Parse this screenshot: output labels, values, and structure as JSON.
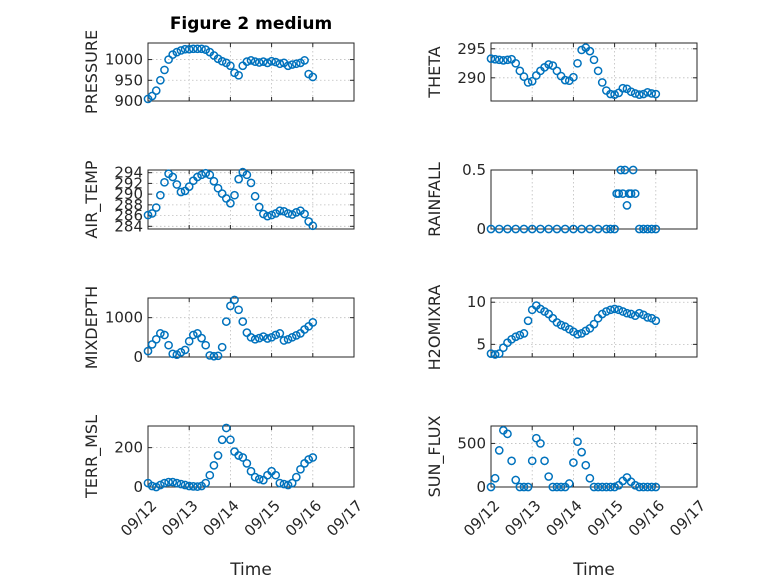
{
  "figure": {
    "title": "Figure 2 medium",
    "xlabel": "Time"
  },
  "colors": {
    "marker": "#0072bd",
    "axis": "#262626"
  },
  "x_ticks": [
    "09/12",
    "09/13",
    "09/14",
    "09/15",
    "09/16",
    "09/17"
  ],
  "chart_data": [
    {
      "type": "scatter",
      "id": "pressure",
      "ylabel": "PRESSURE",
      "xlim": [
        0,
        5
      ],
      "ylim": [
        900,
        1040
      ],
      "yticks": [
        900,
        950,
        1000
      ],
      "x": [
        0,
        0.1,
        0.2,
        0.3,
        0.4,
        0.5,
        0.6,
        0.7,
        0.8,
        0.9,
        1.0,
        1.1,
        1.2,
        1.3,
        1.4,
        1.5,
        1.6,
        1.7,
        1.8,
        1.9,
        2.0,
        2.1,
        2.2,
        2.3,
        2.4,
        2.5,
        2.6,
        2.7,
        2.8,
        2.9,
        3.0,
        3.1,
        3.2,
        3.3,
        3.4,
        3.5,
        3.6,
        3.7,
        3.8,
        3.9,
        4.0
      ],
      "y": [
        905,
        912,
        925,
        950,
        975,
        1000,
        1012,
        1018,
        1022,
        1025,
        1025,
        1026,
        1026,
        1026,
        1024,
        1018,
        1010,
        1002,
        996,
        992,
        985,
        968,
        962,
        985,
        995,
        998,
        995,
        993,
        995,
        992,
        996,
        994,
        990,
        992,
        985,
        988,
        990,
        992,
        998,
        965,
        958
      ]
    },
    {
      "type": "scatter",
      "id": "theta",
      "ylabel": "THETA",
      "xlim": [
        0,
        5
      ],
      "ylim": [
        286,
        296
      ],
      "yticks": [
        290,
        295
      ],
      "x": [
        0,
        0.1,
        0.2,
        0.3,
        0.4,
        0.5,
        0.6,
        0.7,
        0.8,
        0.9,
        1.0,
        1.1,
        1.2,
        1.3,
        1.4,
        1.5,
        1.6,
        1.7,
        1.8,
        1.9,
        2.0,
        2.1,
        2.2,
        2.3,
        2.4,
        2.5,
        2.6,
        2.7,
        2.8,
        2.9,
        3.0,
        3.1,
        3.2,
        3.3,
        3.4,
        3.5,
        3.6,
        3.7,
        3.8,
        3.9,
        4.0
      ],
      "y": [
        293.3,
        293.2,
        293.1,
        293,
        293.1,
        293.2,
        292.5,
        291.2,
        290.2,
        289.2,
        289.4,
        290.4,
        291.2,
        291.8,
        292.3,
        292.1,
        291.2,
        290.3,
        289.6,
        289.5,
        290.1,
        292.5,
        294.8,
        295.2,
        294.6,
        293.1,
        291.2,
        289.2,
        287.8,
        287.2,
        287.1,
        287.4,
        288.2,
        288.1,
        287.6,
        287.3,
        287.1,
        287.2,
        287.5,
        287.3,
        287.2
      ]
    },
    {
      "type": "scatter",
      "id": "air_temp",
      "ylabel": "AIR_TEMP",
      "xlim": [
        0,
        5
      ],
      "ylim": [
        283.5,
        294.5
      ],
      "yticks": [
        284,
        286,
        288,
        290,
        292,
        294
      ],
      "x": [
        0,
        0.1,
        0.2,
        0.3,
        0.4,
        0.5,
        0.6,
        0.7,
        0.8,
        0.9,
        1.0,
        1.1,
        1.2,
        1.3,
        1.4,
        1.5,
        1.6,
        1.7,
        1.8,
        1.9,
        2.0,
        2.1,
        2.2,
        2.3,
        2.4,
        2.5,
        2.6,
        2.7,
        2.8,
        2.9,
        3.0,
        3.1,
        3.2,
        3.3,
        3.4,
        3.5,
        3.6,
        3.7,
        3.8,
        3.9,
        4.0
      ],
      "y": [
        286.1,
        286.4,
        287.5,
        289.8,
        292.2,
        293.8,
        293.2,
        291.8,
        290.4,
        290.6,
        291.4,
        292.5,
        293.2,
        293.6,
        293.9,
        293.6,
        292.4,
        291.1,
        290.1,
        289.2,
        288.3,
        289.8,
        292.8,
        294.1,
        293.6,
        292.1,
        289.6,
        287.6,
        286.3,
        285.9,
        286.1,
        286.4,
        286.9,
        286.8,
        286.4,
        286.2,
        286.6,
        286.9,
        286.3,
        284.9,
        284.1
      ]
    },
    {
      "type": "scatter",
      "id": "rainfall",
      "ylabel": "RAINFALL",
      "xlim": [
        0,
        5
      ],
      "ylim": [
        0,
        0.5
      ],
      "yticks": [
        0,
        0.5
      ],
      "x": [
        0,
        0.2,
        0.4,
        0.6,
        0.8,
        1.0,
        1.2,
        1.4,
        1.6,
        1.8,
        2.0,
        2.2,
        2.4,
        2.6,
        2.8,
        2.9,
        3.0,
        3.05,
        3.1,
        3.15,
        3.2,
        3.25,
        3.3,
        3.35,
        3.4,
        3.45,
        3.5,
        3.6,
        3.7,
        3.8,
        3.9,
        4.0
      ],
      "y": [
        0,
        0,
        0,
        0,
        0,
        0,
        0,
        0,
        0,
        0,
        0,
        0,
        0,
        0,
        0,
        0,
        0,
        0.3,
        0.3,
        0.5,
        0.3,
        0.5,
        0.2,
        0.3,
        0.3,
        0.5,
        0.3,
        0,
        0,
        0,
        0,
        0
      ]
    },
    {
      "type": "scatter",
      "id": "mixdepth",
      "ylabel": "MIXDEPTH",
      "xlim": [
        0,
        5
      ],
      "ylim": [
        0,
        1500
      ],
      "yticks": [
        0,
        1000
      ],
      "x": [
        0,
        0.1,
        0.2,
        0.3,
        0.4,
        0.5,
        0.6,
        0.7,
        0.8,
        0.9,
        1.0,
        1.1,
        1.2,
        1.3,
        1.4,
        1.5,
        1.6,
        1.7,
        1.8,
        1.9,
        2.0,
        2.1,
        2.2,
        2.3,
        2.4,
        2.5,
        2.6,
        2.7,
        2.8,
        2.9,
        3.0,
        3.1,
        3.2,
        3.3,
        3.4,
        3.5,
        3.6,
        3.7,
        3.8,
        3.9,
        4.0
      ],
      "y": [
        150,
        320,
        450,
        600,
        560,
        300,
        80,
        60,
        120,
        180,
        400,
        560,
        600,
        480,
        300,
        40,
        20,
        30,
        250,
        900,
        1300,
        1450,
        1200,
        900,
        620,
        500,
        450,
        480,
        520,
        470,
        500,
        560,
        600,
        420,
        450,
        500,
        550,
        600,
        700,
        780,
        880
      ]
    },
    {
      "type": "scatter",
      "id": "h2omixra",
      "ylabel": "H2OMIXRA",
      "xlim": [
        0,
        5
      ],
      "ylim": [
        3.5,
        10.5
      ],
      "yticks": [
        5,
        10
      ],
      "x": [
        0,
        0.1,
        0.2,
        0.3,
        0.4,
        0.5,
        0.6,
        0.7,
        0.8,
        0.9,
        1.0,
        1.1,
        1.2,
        1.3,
        1.4,
        1.5,
        1.6,
        1.7,
        1.8,
        1.9,
        2.0,
        2.1,
        2.2,
        2.3,
        2.4,
        2.5,
        2.6,
        2.7,
        2.8,
        2.9,
        3.0,
        3.1,
        3.2,
        3.3,
        3.4,
        3.5,
        3.6,
        3.7,
        3.8,
        3.9,
        4.0
      ],
      "y": [
        3.9,
        3.8,
        3.9,
        4.6,
        5.2,
        5.6,
        5.9,
        6.1,
        6.3,
        7.8,
        9.1,
        9.6,
        9.2,
        8.9,
        8.6,
        8.1,
        7.6,
        7.3,
        7.1,
        6.8,
        6.5,
        6.2,
        6.3,
        6.6,
        6.9,
        7.4,
        8.1,
        8.6,
        8.9,
        9.1,
        9.2,
        9.1,
        8.9,
        8.7,
        8.6,
        8.4,
        8.7,
        8.5,
        8.2,
        8.1,
        7.8
      ]
    },
    {
      "type": "scatter",
      "id": "terr_msl",
      "ylabel": "TERR_MSL",
      "xlim": [
        0,
        5
      ],
      "ylim": [
        0,
        310
      ],
      "yticks": [
        0,
        200
      ],
      "x": [
        0,
        0.1,
        0.2,
        0.3,
        0.4,
        0.5,
        0.6,
        0.7,
        0.8,
        0.9,
        1.0,
        1.1,
        1.2,
        1.3,
        1.4,
        1.5,
        1.6,
        1.7,
        1.8,
        1.9,
        2.0,
        2.1,
        2.2,
        2.3,
        2.4,
        2.5,
        2.6,
        2.7,
        2.8,
        2.9,
        3.0,
        3.1,
        3.2,
        3.3,
        3.4,
        3.5,
        3.6,
        3.7,
        3.8,
        3.9,
        4.0
      ],
      "y": [
        20,
        5,
        0,
        10,
        20,
        25,
        25,
        20,
        15,
        10,
        5,
        3,
        2,
        5,
        20,
        60,
        110,
        160,
        240,
        300,
        240,
        180,
        160,
        150,
        120,
        80,
        50,
        40,
        35,
        60,
        80,
        60,
        20,
        15,
        10,
        20,
        50,
        90,
        120,
        140,
        150
      ]
    },
    {
      "type": "scatter",
      "id": "sun_flux",
      "ylabel": "SUN_FLUX",
      "xlim": [
        0,
        5
      ],
      "ylim": [
        0,
        700
      ],
      "yticks": [
        0,
        500
      ],
      "x": [
        0,
        0.1,
        0.2,
        0.3,
        0.4,
        0.5,
        0.6,
        0.7,
        0.8,
        0.9,
        1.0,
        1.1,
        1.2,
        1.3,
        1.4,
        1.5,
        1.6,
        1.7,
        1.8,
        1.9,
        2.0,
        2.1,
        2.2,
        2.3,
        2.4,
        2.5,
        2.6,
        2.7,
        2.8,
        2.9,
        3.0,
        3.1,
        3.2,
        3.3,
        3.4,
        3.5,
        3.6,
        3.7,
        3.8,
        3.9,
        4.0
      ],
      "y": [
        0,
        100,
        420,
        650,
        610,
        300,
        80,
        0,
        0,
        0,
        300,
        560,
        500,
        300,
        120,
        0,
        0,
        0,
        0,
        40,
        280,
        520,
        400,
        250,
        100,
        0,
        0,
        0,
        0,
        0,
        0,
        20,
        70,
        110,
        60,
        20,
        0,
        0,
        0,
        0,
        0
      ]
    }
  ]
}
